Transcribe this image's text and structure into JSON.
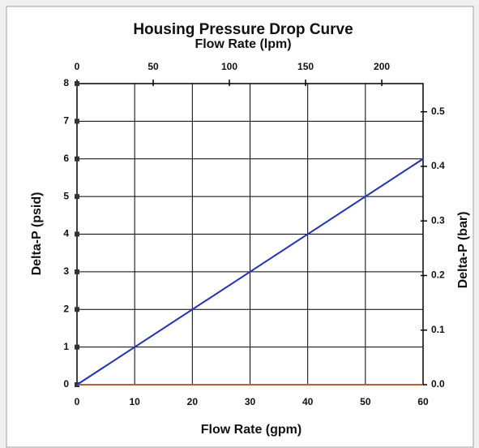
{
  "chart_data": {
    "type": "line",
    "title": "Housing Pressure Drop Curve",
    "x2label": "Flow Rate (lpm)",
    "xlabel": "Flow Rate (gpm)",
    "ylabel": "Delta-P (psid)",
    "y2label": "Delta-P (bar)",
    "x": [
      0,
      60
    ],
    "series": [
      {
        "color": "#1f2fd0",
        "values": [
          0,
          6
        ]
      },
      {
        "color": "#b5652a",
        "values": [
          0,
          0
        ]
      }
    ],
    "xlim": [
      0,
      60
    ],
    "xticks": [
      0,
      10,
      20,
      30,
      40,
      50,
      60
    ],
    "x2lim": [
      0,
      227.1
    ],
    "x2ticks": [
      0,
      50,
      100,
      150,
      200
    ],
    "ylim": [
      0,
      8
    ],
    "yticks": [
      0,
      1,
      2,
      3,
      4,
      5,
      6,
      7,
      8
    ],
    "y2lim": [
      0,
      0.5516
    ],
    "y2ticks": [
      {
        "value": 0,
        "label": "0.0"
      },
      0.1,
      0.2,
      0.3,
      0.4,
      0.5
    ],
    "grid": true
  }
}
